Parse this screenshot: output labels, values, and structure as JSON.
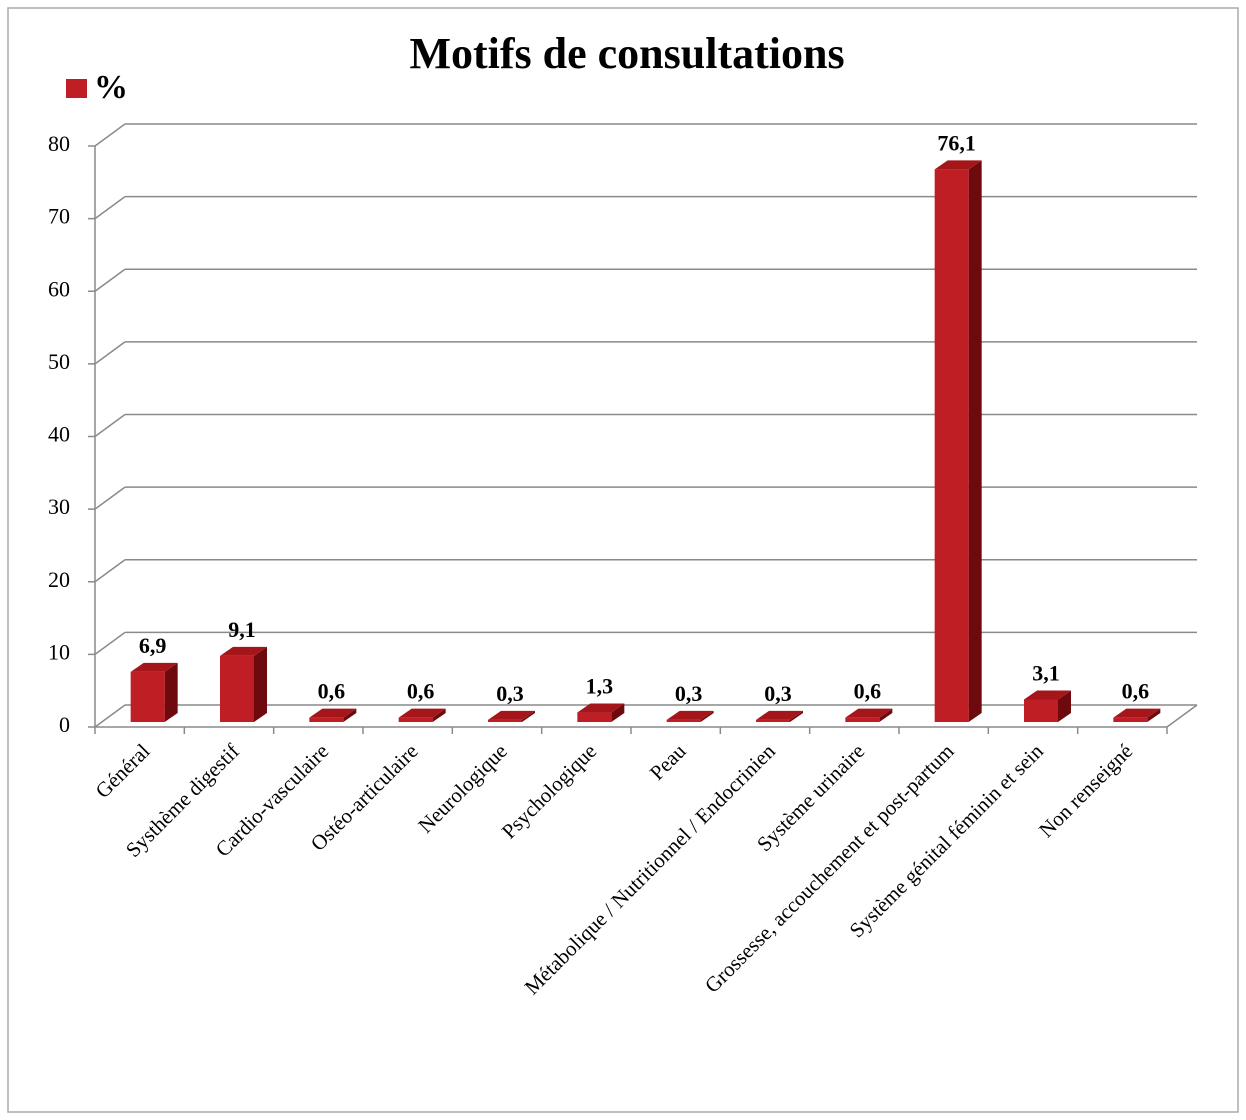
{
  "chart_data": {
    "type": "bar3d",
    "title": "Motifs de consultations",
    "categories": [
      "Général",
      "Systhème digestif",
      "Cardio-vasculaire",
      "Ostéo-articulaire",
      "Neurologique",
      "Psychologique",
      "Peau",
      "Métabolique / Nutritionnel / Endocrinien",
      "Système urinaire",
      "Grossesse, accouchement et post-partum",
      "Système génital féminin et sein",
      "Non renseigné"
    ],
    "series": [
      {
        "name": "%",
        "color": "#be1e24",
        "values": [
          6.9,
          9.1,
          0.6,
          0.6,
          0.3,
          1.3,
          0.3,
          0.3,
          0.6,
          76.1,
          3.1,
          0.6
        ],
        "value_labels": [
          "6,9",
          "9,1",
          "0,6",
          "0,6",
          "0,3",
          "1,3",
          "0,3",
          "0,3",
          "0,6",
          "76,1",
          "3,1",
          "0,6"
        ]
      }
    ],
    "ylim": [
      0,
      80
    ],
    "yticks": [
      0,
      10,
      20,
      30,
      40,
      50,
      60,
      70,
      80
    ],
    "grid": true,
    "legend": "top-left"
  }
}
